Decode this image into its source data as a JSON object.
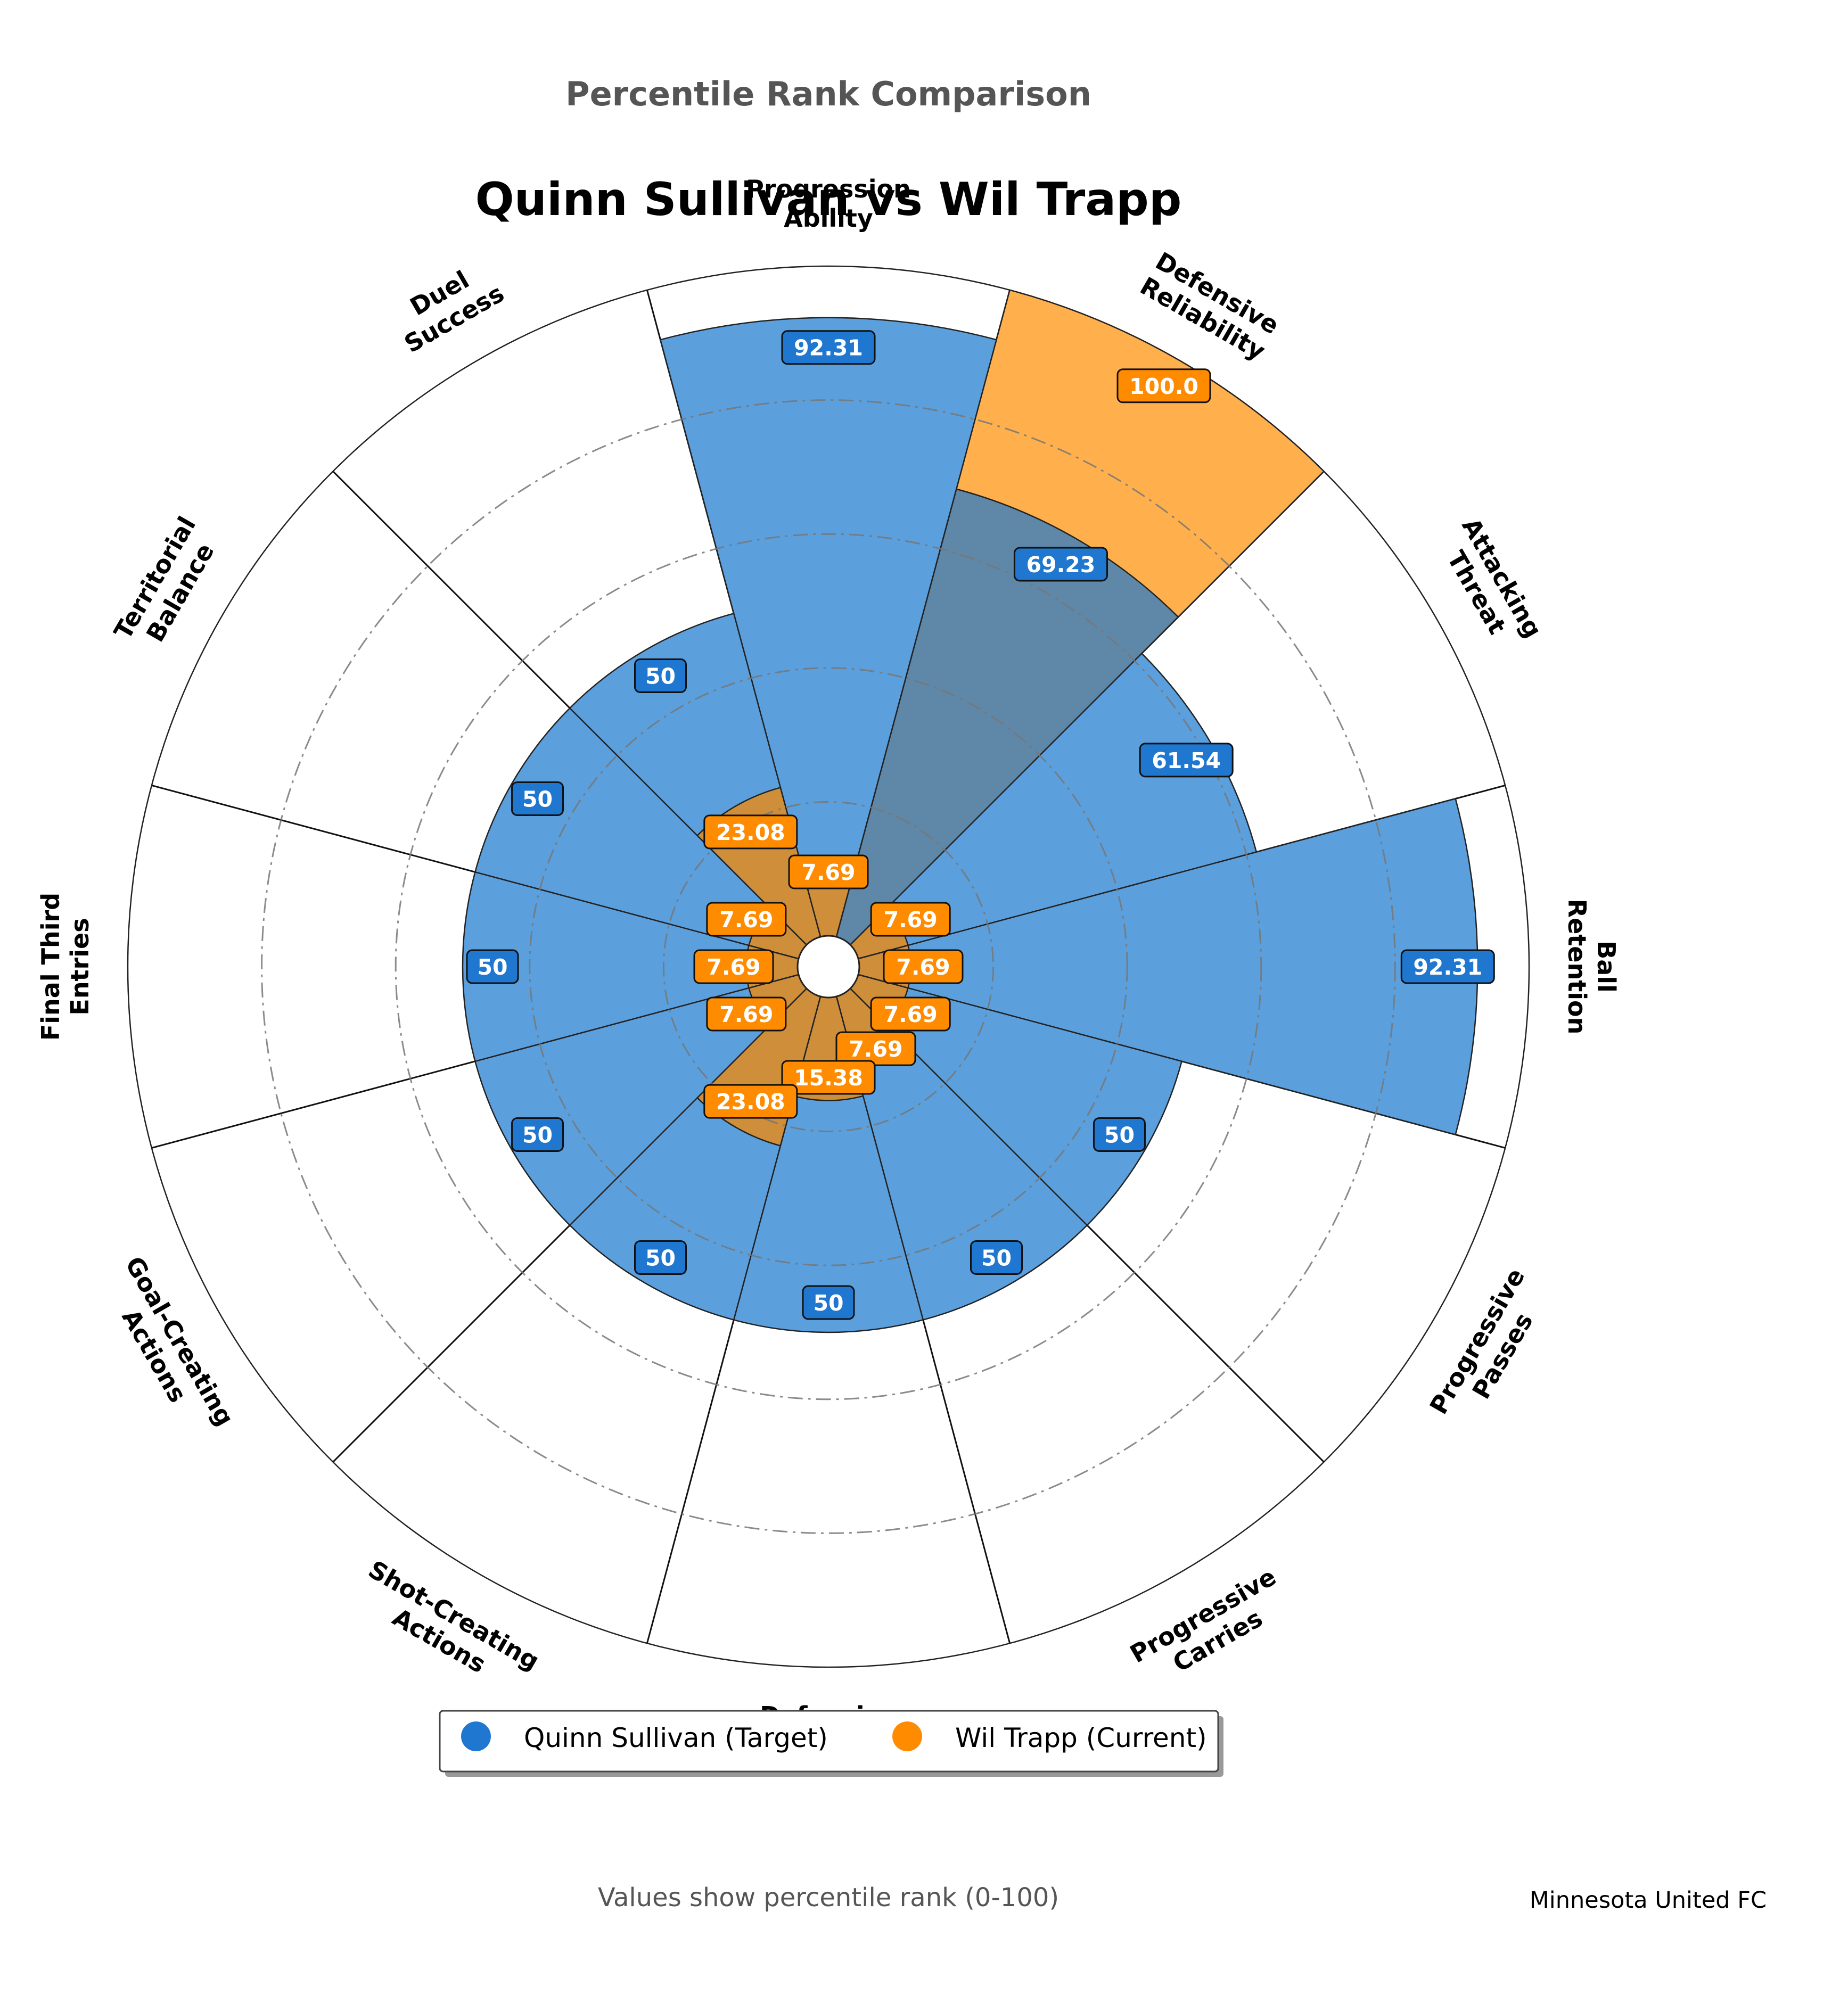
{
  "page": {
    "suptitle": "Percentile Rank Comparison",
    "title": "Quinn Sullivan vs Wil Trapp",
    "footer_note": "Values show percentile rank (0-100)",
    "club": "Minnesota United FC"
  },
  "colors": {
    "target": "#1f77d0",
    "current": "#ff8c00",
    "target_fill": "#5b9fdd",
    "current_fill": "#ffb04d",
    "overlap_fill": "#5f87a7",
    "overlap_small_fill": "#cf8e3a",
    "title_gray": "#555555"
  },
  "chart_data": {
    "type": "polar-bar",
    "title": "Quinn Sullivan vs Wil Trapp",
    "categories": [
      "Progression\nAbility",
      "Defensive\nReliability",
      "Attacking\nThreat",
      "Ball\nRetention",
      "Progressive\nPasses",
      "Progressive\nCarries",
      "Defensive\nActions",
      "Shot-Creating\nActions",
      "Goal-Creating\nActions",
      "Final Third\nEntries",
      "Territorial\nBalance",
      "Duel\nSuccess"
    ],
    "series": [
      {
        "name": "Quinn Sullivan (Target)",
        "values": [
          92.31,
          69.23,
          61.54,
          92.31,
          50,
          50,
          50,
          50,
          50,
          50,
          50,
          50
        ],
        "labels": [
          "92.31",
          "69.23",
          "61.54",
          "92.31",
          "50",
          "50",
          "50",
          "50",
          "50",
          "50",
          "50",
          "50"
        ]
      },
      {
        "name": "Wil Trapp (Current)",
        "values": [
          7.69,
          100.0,
          7.69,
          7.69,
          7.69,
          7.69,
          15.38,
          23.08,
          7.69,
          7.69,
          7.69,
          23.08
        ],
        "labels": [
          "7.69",
          "100.0",
          "7.69",
          "7.69",
          "7.69",
          "7.69",
          "15.38",
          "23.08",
          "7.69",
          "7.69",
          "7.69",
          "23.08"
        ]
      }
    ],
    "rlim": [
      0,
      100
    ],
    "grid_rings": [
      20,
      40,
      60,
      80
    ],
    "legend_position": "bottom-center"
  }
}
